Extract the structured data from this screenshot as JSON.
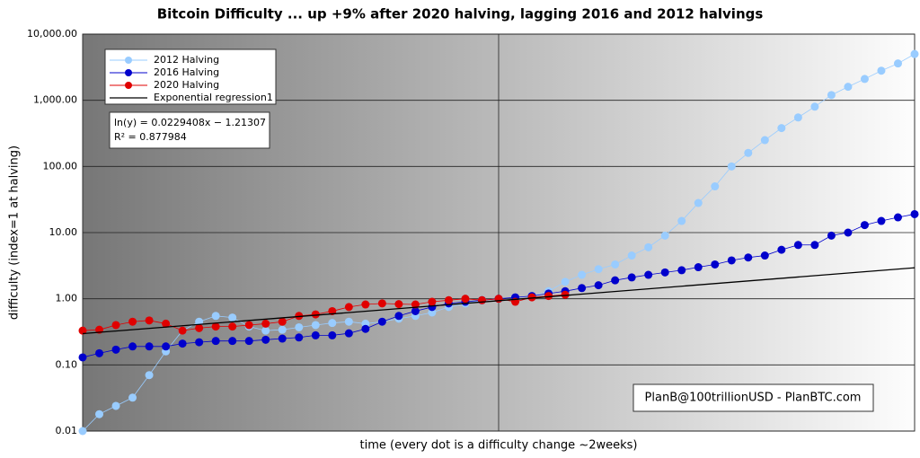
{
  "chart_data": {
    "type": "scatter",
    "title": "Bitcoin Difficulty ... up +9% after 2020 halving, lagging 2016 and 2012 halvings",
    "x_label": "time (every dot is a difficulty change ~2weeks)",
    "y_label": "difficulty (index=1 at halving)",
    "log_scale": true,
    "grid": true,
    "legend": "upper left",
    "xlim": [
      0,
      100
    ],
    "xticks": [
      50
    ],
    "ylim": [
      0.01,
      10000
    ],
    "yticks": [
      {
        "value": 0.01,
        "label": "0.01"
      },
      {
        "value": 0.1,
        "label": "0.10"
      },
      {
        "value": 1,
        "label": "1.00"
      },
      {
        "value": 10,
        "label": "10.00"
      },
      {
        "value": 100,
        "label": "100.00"
      },
      {
        "value": 1000,
        "label": "1,000.00"
      },
      {
        "value": 10000,
        "label": "10,000.00"
      }
    ],
    "series": [
      {
        "name": "2012 Halving",
        "color": "#99ccff",
        "x": [
          0,
          2,
          4,
          6,
          8,
          10,
          12,
          14,
          16,
          18,
          20,
          22,
          24,
          26,
          28,
          30,
          32,
          34,
          36,
          38,
          40,
          42,
          44,
          46,
          48,
          50,
          52,
          54,
          56,
          58,
          60,
          62,
          64,
          66,
          68,
          70,
          72,
          74,
          76,
          78,
          80,
          82,
          84,
          86,
          88,
          90,
          92,
          94,
          96,
          98,
          100
        ],
        "values": [
          0.01,
          0.018,
          0.024,
          0.032,
          0.07,
          0.16,
          0.33,
          0.45,
          0.55,
          0.52,
          0.38,
          0.33,
          0.34,
          0.37,
          0.4,
          0.43,
          0.45,
          0.42,
          0.45,
          0.5,
          0.55,
          0.62,
          0.75,
          0.85,
          0.95,
          1.0,
          1.05,
          1.1,
          1.3,
          1.8,
          2.3,
          2.8,
          3.3,
          4.5,
          6,
          9,
          15,
          28,
          50,
          100,
          160,
          250,
          380,
          550,
          800,
          1200,
          1600,
          2100,
          2800,
          3600,
          5000
        ]
      },
      {
        "name": "2016 Halving",
        "color": "#0000cc",
        "x": [
          0,
          2,
          4,
          6,
          8,
          10,
          12,
          14,
          16,
          18,
          20,
          22,
          24,
          26,
          28,
          30,
          32,
          34,
          36,
          38,
          40,
          42,
          44,
          46,
          48,
          50,
          52,
          54,
          56,
          58,
          60,
          62,
          64,
          66,
          68,
          70,
          72,
          74,
          76,
          78,
          80,
          82,
          84,
          86,
          88,
          90,
          92,
          94,
          96,
          98,
          100
        ],
        "values": [
          0.13,
          0.15,
          0.17,
          0.19,
          0.19,
          0.19,
          0.21,
          0.22,
          0.23,
          0.23,
          0.23,
          0.24,
          0.25,
          0.26,
          0.28,
          0.28,
          0.3,
          0.35,
          0.45,
          0.55,
          0.65,
          0.75,
          0.85,
          0.9,
          0.95,
          1.0,
          1.05,
          1.1,
          1.2,
          1.3,
          1.45,
          1.6,
          1.9,
          2.1,
          2.3,
          2.5,
          2.7,
          3.0,
          3.3,
          3.8,
          4.2,
          4.5,
          5.5,
          6.5,
          6.5,
          9,
          10,
          13,
          15,
          17,
          19
        ]
      },
      {
        "name": "2020 Halving",
        "color": "#e00000",
        "x": [
          0,
          2,
          4,
          6,
          8,
          10,
          12,
          14,
          16,
          18,
          20,
          22,
          24,
          26,
          28,
          30,
          32,
          34,
          36,
          38,
          40,
          42,
          44,
          46,
          48,
          50,
          52,
          54,
          56,
          58
        ],
        "values": [
          0.33,
          0.34,
          0.4,
          0.45,
          0.47,
          0.42,
          0.33,
          0.36,
          0.38,
          0.38,
          0.4,
          0.42,
          0.45,
          0.55,
          0.58,
          0.65,
          0.75,
          0.82,
          0.85,
          0.83,
          0.82,
          0.9,
          0.95,
          1.0,
          0.95,
          1.0,
          0.9,
          1.05,
          1.1,
          1.15
        ]
      },
      {
        "name": "Exponential regression1",
        "color": "#000000",
        "line_only": true,
        "x": [
          0,
          100
        ],
        "values": [
          0.297,
          2.94
        ]
      }
    ],
    "annotations": [
      "ln(y) = 0.0229408x − 1.21307",
      "R² = 0.877984",
      "PlanB@100trillionUSD  -  PlanBTC.com"
    ]
  }
}
